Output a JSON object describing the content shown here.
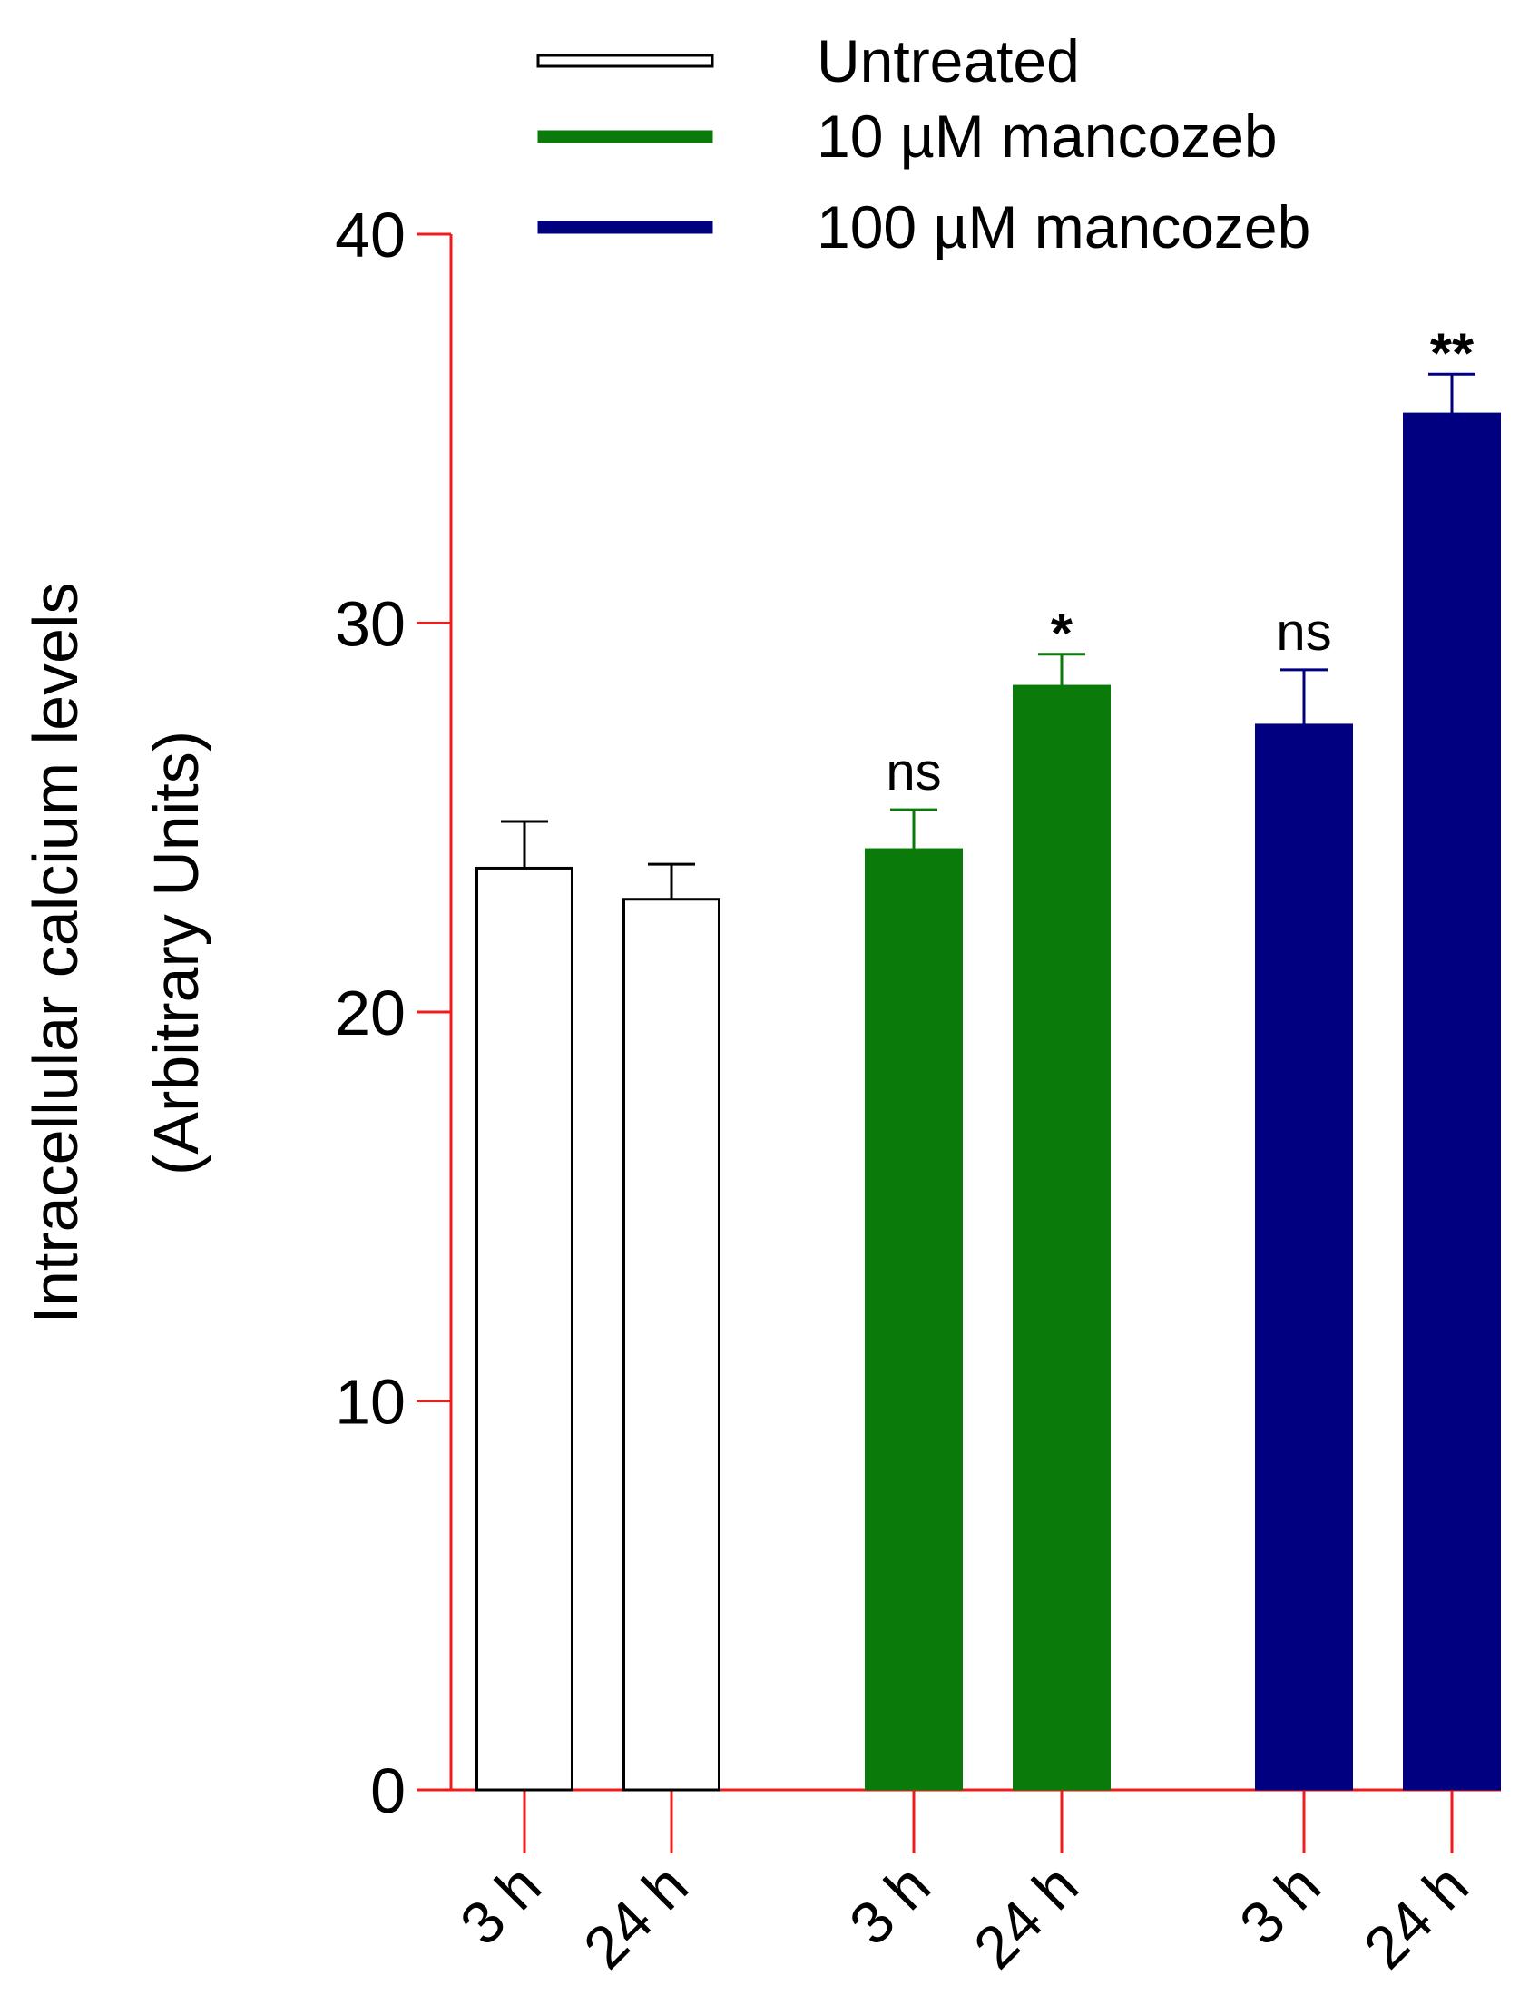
{
  "chart_data": {
    "type": "bar",
    "title": "",
    "ylabel": [
      "Intracellular calcium levels",
      "(Arbitrary  Units)"
    ],
    "xlabel": "",
    "ylim": [
      0,
      40
    ],
    "yticks": [
      0,
      10,
      20,
      30,
      40
    ],
    "grid": false,
    "legend_position": "top-right",
    "axis_color": "#ee1c1c",
    "legend": [
      {
        "label": "Untreated",
        "color": "#ffffff",
        "edge": "#000000"
      },
      {
        "label": "10 µM mancozeb",
        "color": "#0a7a0a",
        "edge": "#0a7a0a"
      },
      {
        "label": "100 µM mancozeb",
        "color": "#000080",
        "edge": "#000080"
      }
    ],
    "bars": [
      {
        "label": "3 h",
        "series": "Untreated",
        "value": 23.7,
        "error": 1.2,
        "annotation": ""
      },
      {
        "label": "24 h",
        "series": "Untreated",
        "value": 22.9,
        "error": 0.9,
        "annotation": ""
      },
      {
        "label": "3 h",
        "series": "10 µM mancozeb",
        "value": 24.2,
        "error": 1.0,
        "annotation": "ns"
      },
      {
        "label": "24 h",
        "series": "10 µM mancozeb",
        "value": 28.4,
        "error": 0.8,
        "annotation": "*"
      },
      {
        "label": "3 h",
        "series": "100 µM mancozeb",
        "value": 27.4,
        "error": 1.4,
        "annotation": "ns"
      },
      {
        "label": "24 h",
        "series": "100 µM mancozeb",
        "value": 35.4,
        "error": 1.0,
        "annotation": "**"
      }
    ]
  }
}
